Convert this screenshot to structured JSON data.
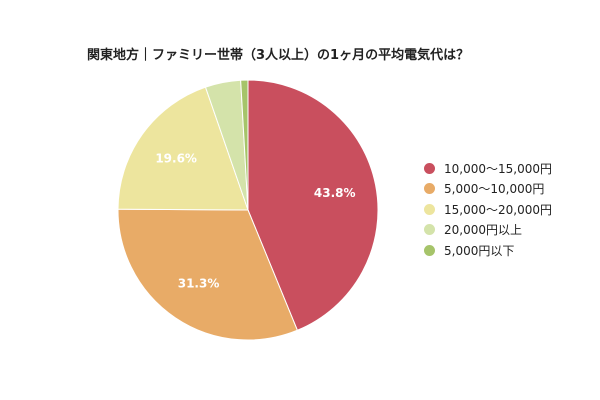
{
  "chart_data": {
    "type": "pie",
    "title": "関東地方｜ファミリー世帯（3人以上）の1ヶ月の平均電気代は？",
    "slices": [
      {
        "label": "10,000〜15,000円",
        "value": 43.8,
        "value_label": "43.8%",
        "color": "#c94f5e"
      },
      {
        "label": "5,000〜10,000円",
        "value": 31.3,
        "value_label": "31.3%",
        "color": "#e8ab67"
      },
      {
        "label": "15,000〜20,000円",
        "value": 19.6,
        "value_label": "19.6%",
        "color": "#ede59e"
      },
      {
        "label": "20,000円以上",
        "value": 4.4,
        "value_label": "",
        "color": "#d4e3aa"
      },
      {
        "label": "5,000円以下",
        "value": 0.9,
        "value_label": "",
        "color": "#a6c46a"
      }
    ],
    "legend_position": "right",
    "start_angle": "top, clockwise"
  }
}
